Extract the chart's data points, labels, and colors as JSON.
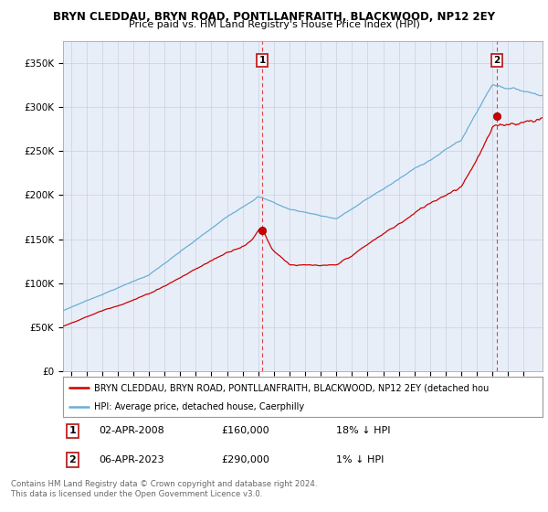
{
  "title": "BRYN CLEDDAU, BRYN ROAD, PONTLLANFRAITH, BLACKWOOD, NP12 2EY",
  "subtitle": "Price paid vs. HM Land Registry's House Price Index (HPI)",
  "ylabel_ticks": [
    "£0",
    "£50K",
    "£100K",
    "£150K",
    "£200K",
    "£250K",
    "£300K",
    "£350K"
  ],
  "ytick_values": [
    0,
    50000,
    100000,
    150000,
    200000,
    250000,
    300000,
    350000
  ],
  "ylim": [
    0,
    375000
  ],
  "xlim_start": 1995.5,
  "xlim_end": 2026.2,
  "sale1_date": 2008.25,
  "sale1_price": 160000,
  "sale2_date": 2023.27,
  "sale2_price": 290000,
  "hpi_color": "#6baed6",
  "price_color": "#cc0000",
  "vline_color": "#dd4444",
  "background_color": "#e8eef8",
  "grid_color": "#c8d0e0",
  "legend_line1": "BRYN CLEDDAU, BRYN ROAD, PONTLLANFRAITH, BLACKWOOD, NP12 2EY (detached hou",
  "legend_line2": "HPI: Average price, detached house, Caerphilly",
  "footer": "Contains HM Land Registry data © Crown copyright and database right 2024.\nThis data is licensed under the Open Government Licence v3.0."
}
